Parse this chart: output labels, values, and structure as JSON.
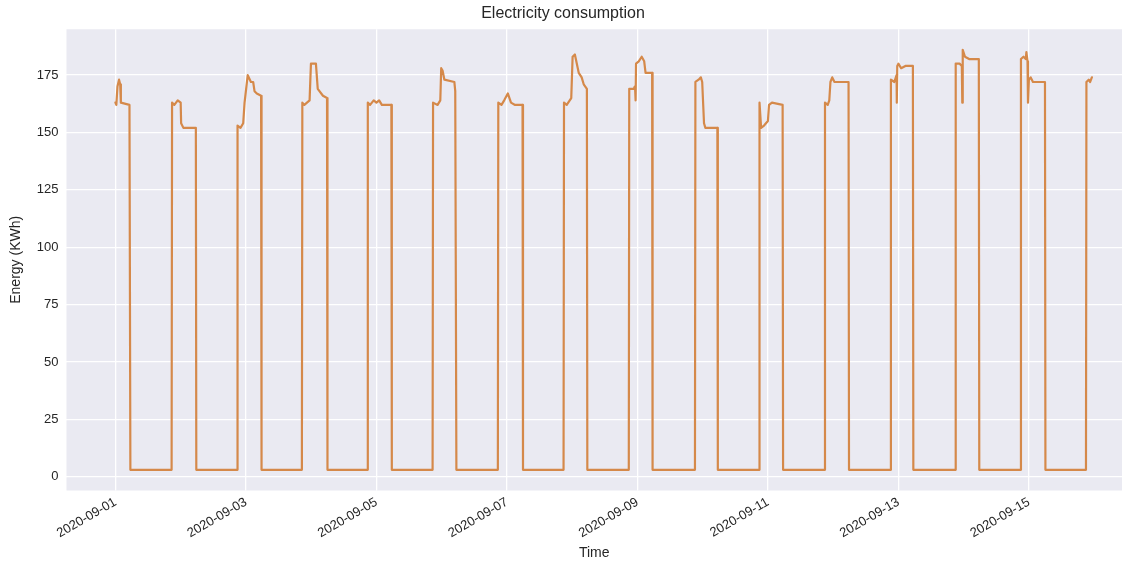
{
  "chart_data": {
    "type": "line",
    "title": "Electricity consumption",
    "xlabel": "Time",
    "ylabel": "Energy (KWh)",
    "xlim": [
      "2020-08-31T06:00",
      "2020-09-16T10:15"
    ],
    "xticks": [
      "2020-09-01",
      "2020-09-03",
      "2020-09-05",
      "2020-09-07",
      "2020-09-09",
      "2020-09-11",
      "2020-09-13",
      "2020-09-15"
    ],
    "ylim": [
      -6,
      195
    ],
    "yticks": [
      0,
      25,
      50,
      75,
      100,
      125,
      150,
      175
    ],
    "grid": true,
    "marker": "none",
    "line_style": "solid",
    "series": [
      {
        "color": "#d5894a",
        "x": [
          "2020-09-01T00:00",
          "2020-09-01T00:20",
          "2020-09-01T00:45",
          "2020-09-01T01:20",
          "2020-09-01T01:45",
          "2020-09-01T02:00",
          "2020-09-01T05:10",
          "2020-09-01T05:30",
          "2020-09-01T20:40",
          "2020-09-01T20:50",
          "2020-09-01T21:40",
          "2020-09-01T22:55",
          "2020-09-02T00:00",
          "2020-09-02T00:10",
          "2020-09-02T01:00",
          "2020-09-02T05:35",
          "2020-09-02T05:45",
          "2020-09-02T20:45",
          "2020-09-02T20:55",
          "2020-09-02T22:00",
          "2020-09-02T23:00",
          "2020-09-02T23:30",
          "2020-09-03T00:40",
          "2020-09-03T01:50",
          "2020-09-03T02:40",
          "2020-09-03T03:10",
          "2020-09-03T04:00",
          "2020-09-03T05:35",
          "2020-09-03T05:45",
          "2020-09-03T20:35",
          "2020-09-03T20:45",
          "2020-09-03T21:30",
          "2020-09-03T23:25",
          "2020-09-03T23:55",
          "2020-09-04T01:45",
          "2020-09-04T02:25",
          "2020-09-04T04:20",
          "2020-09-04T05:50",
          "2020-09-04T06:00",
          "2020-09-04T20:40",
          "2020-09-04T20:50",
          "2020-09-04T21:40",
          "2020-09-04T23:00",
          "2020-09-05T00:00",
          "2020-09-05T01:00",
          "2020-09-05T02:00",
          "2020-09-05T05:30",
          "2020-09-05T05:40",
          "2020-09-05T20:40",
          "2020-09-05T20:50",
          "2020-09-05T22:30",
          "2020-09-05T23:30",
          "2020-09-05T23:50",
          "2020-09-06T00:20",
          "2020-09-06T01:00",
          "2020-09-06T04:40",
          "2020-09-06T05:00",
          "2020-09-06T05:25",
          "2020-09-06T20:40",
          "2020-09-06T20:50",
          "2020-09-06T22:00",
          "2020-09-06T23:00",
          "2020-09-07T00:20",
          "2020-09-07T01:30",
          "2020-09-07T03:00",
          "2020-09-07T05:45",
          "2020-09-07T05:55",
          "2020-09-07T20:50",
          "2020-09-07T21:00",
          "2020-09-07T22:00",
          "2020-09-07T23:40",
          "2020-09-08T00:10",
          "2020-09-08T01:00",
          "2020-09-08T02:25",
          "2020-09-08T03:30",
          "2020-09-08T04:15",
          "2020-09-08T05:25",
          "2020-09-08T05:35",
          "2020-09-08T20:50",
          "2020-09-08T21:00",
          "2020-09-08T22:40",
          "2020-09-08T23:00",
          "2020-09-08T23:10",
          "2020-09-08T23:20",
          "2020-09-08T23:30",
          "2020-09-09T00:30",
          "2020-09-09T01:35",
          "2020-09-09T02:30",
          "2020-09-09T03:00",
          "2020-09-09T05:25",
          "2020-09-09T05:35",
          "2020-09-09T21:10",
          "2020-09-09T21:20",
          "2020-09-09T22:30",
          "2020-09-09T23:20",
          "2020-09-09T23:50",
          "2020-09-10T00:30",
          "2020-09-10T01:00",
          "2020-09-10T05:25",
          "2020-09-10T05:35",
          "2020-09-10T20:45",
          "2020-09-10T20:55",
          "2020-09-10T21:30",
          "2020-09-10T22:35",
          "2020-09-11T00:00",
          "2020-09-11T00:25",
          "2020-09-11T01:30",
          "2020-09-11T05:25",
          "2020-09-11T05:35",
          "2020-09-11T20:50",
          "2020-09-11T21:00",
          "2020-09-11T22:00",
          "2020-09-11T22:35",
          "2020-09-11T23:00",
          "2020-09-11T23:40",
          "2020-09-12T00:30",
          "2020-09-12T05:40",
          "2020-09-12T05:50",
          "2020-09-12T21:05",
          "2020-09-12T21:15",
          "2020-09-12T22:30",
          "2020-09-12T23:20",
          "2020-09-12T23:25",
          "2020-09-12T23:35",
          "2020-09-13T00:00",
          "2020-09-13T01:00",
          "2020-09-13T02:35",
          "2020-09-13T05:20",
          "2020-09-13T05:30",
          "2020-09-13T20:55",
          "2020-09-13T21:05",
          "2020-09-13T22:30",
          "2020-09-13T23:20",
          "2020-09-13T23:30",
          "2020-09-13T23:40",
          "2020-09-14T00:30",
          "2020-09-14T02:00",
          "2020-09-14T05:35",
          "2020-09-14T05:45",
          "2020-09-14T20:55",
          "2020-09-14T21:05",
          "2020-09-14T22:00",
          "2020-09-14T22:50",
          "2020-09-14T23:05",
          "2020-09-14T23:30",
          "2020-09-14T23:40",
          "2020-09-15T00:00",
          "2020-09-15T00:40",
          "2020-09-15T01:30",
          "2020-09-15T05:55",
          "2020-09-15T06:05",
          "2020-09-15T21:00",
          "2020-09-15T21:10",
          "2020-09-15T22:00",
          "2020-09-15T22:30",
          "2020-09-15T23:10"
        ],
        "values": [
          163,
          162,
          170,
          173,
          171,
          163,
          162,
          3,
          3,
          163,
          162,
          164,
          163,
          154,
          152,
          152,
          3,
          3,
          153,
          152,
          154,
          163,
          175,
          172,
          172,
          168,
          167,
          166,
          3,
          3,
          163,
          162,
          164,
          180,
          180,
          169,
          166,
          165,
          3,
          3,
          163,
          162,
          164,
          163,
          164,
          162,
          162,
          3,
          3,
          163,
          162,
          164,
          178,
          177,
          173,
          172,
          168,
          3,
          3,
          163,
          162,
          164,
          167,
          163,
          162,
          162,
          3,
          3,
          163,
          162,
          165,
          183,
          184,
          176,
          174,
          171,
          169,
          3,
          3,
          169,
          169,
          170,
          169,
          164,
          180,
          181,
          183,
          181,
          176,
          176,
          3,
          3,
          172,
          173,
          174,
          172,
          154,
          152,
          152,
          3,
          3,
          163,
          152,
          153,
          155,
          162,
          163,
          162,
          3,
          3,
          163,
          162,
          164,
          172,
          174,
          172,
          172,
          3,
          3,
          173,
          172,
          175,
          163,
          179,
          180,
          178,
          179,
          179,
          3,
          3,
          180,
          180,
          179,
          163,
          186,
          183,
          182,
          182,
          3,
          3,
          182,
          183,
          182,
          185,
          181,
          163,
          173,
          174,
          172,
          172,
          3,
          3,
          172,
          173,
          172,
          174
        ]
      }
    ]
  }
}
